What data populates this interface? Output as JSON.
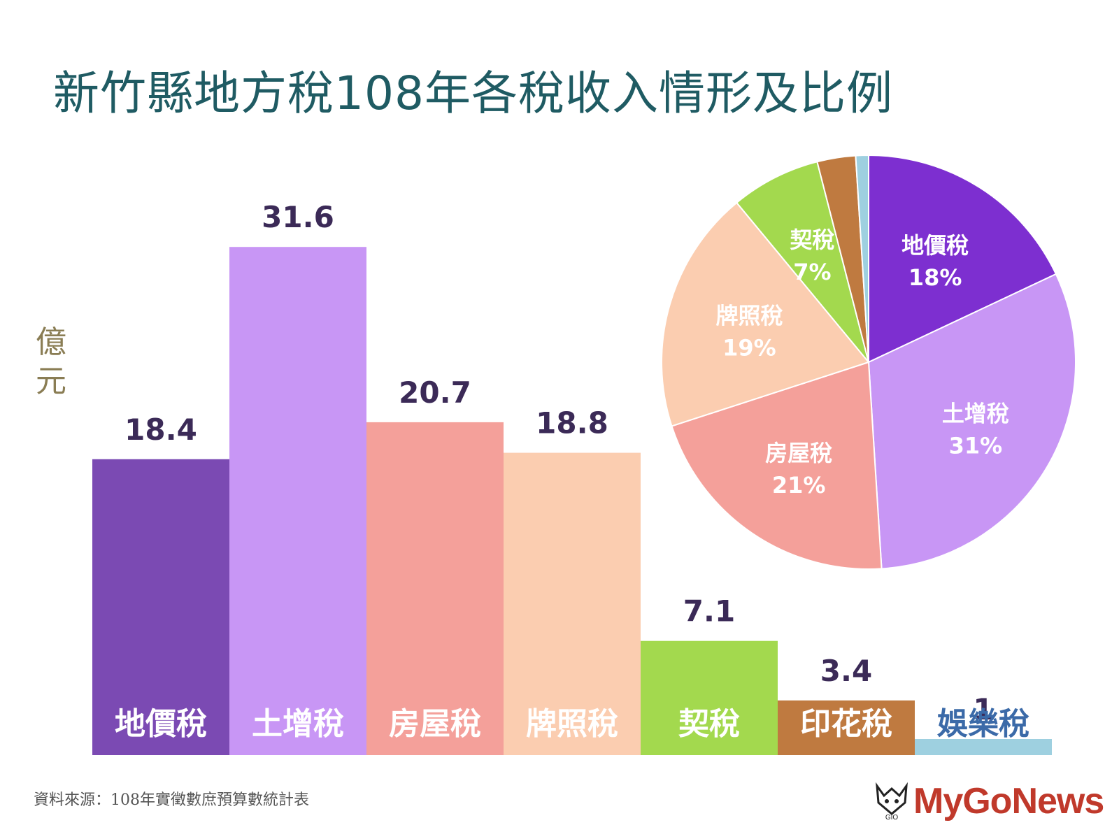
{
  "title": "新竹縣地方稅108年各稅收入情形及比例",
  "unit": "億元",
  "source": "資料來源：108年實徵數庶預算數統計表",
  "logo": {
    "text": "MyGoNews",
    "mark": "GIO"
  },
  "chart_data": [
    {
      "type": "bar",
      "title": "新竹縣地方稅108年各稅收入情形及比例",
      "ylabel": "億元",
      "categories": [
        "地價稅",
        "土增稅",
        "房屋稅",
        "牌照稅",
        "契稅",
        "印花稅",
        "娛樂稅"
      ],
      "values": [
        18.4,
        31.6,
        20.7,
        18.8,
        7.1,
        3.4,
        1
      ],
      "value_labels": [
        "18.4",
        "31.6",
        "20.7",
        "18.8",
        "7.1",
        "3.4",
        "1"
      ],
      "colors": [
        "#7b4ab3",
        "#c896f5",
        "#f4a09a",
        "#fbcdb0",
        "#a3d94e",
        "#bf7a40",
        "#9ed0e0"
      ],
      "label_colors": [
        "#ffffff",
        "#ffffff",
        "#ffffff",
        "#ffffff",
        "#ffffff",
        "#ffffff",
        "#3b6aa8"
      ],
      "ylim": [
        0,
        35
      ]
    },
    {
      "type": "pie",
      "slices": [
        {
          "label": "地價稅",
          "pct_label": "18%",
          "value": 18,
          "color": "#7d2fd0"
        },
        {
          "label": "土增稅",
          "pct_label": "31%",
          "value": 31,
          "color": "#c896f5"
        },
        {
          "label": "房屋稅",
          "pct_label": "21%",
          "value": 21,
          "color": "#f4a09a"
        },
        {
          "label": "牌照稅",
          "pct_label": "19%",
          "value": 19,
          "color": "#fbcdb0"
        },
        {
          "label": "契稅",
          "pct_label": "7%",
          "value": 7,
          "color": "#a3d94e"
        },
        {
          "label": "",
          "pct_label": "",
          "value": 3,
          "color": "#bf7a40"
        },
        {
          "label": "",
          "pct_label": "",
          "value": 1,
          "color": "#9ed0e0"
        }
      ]
    }
  ]
}
